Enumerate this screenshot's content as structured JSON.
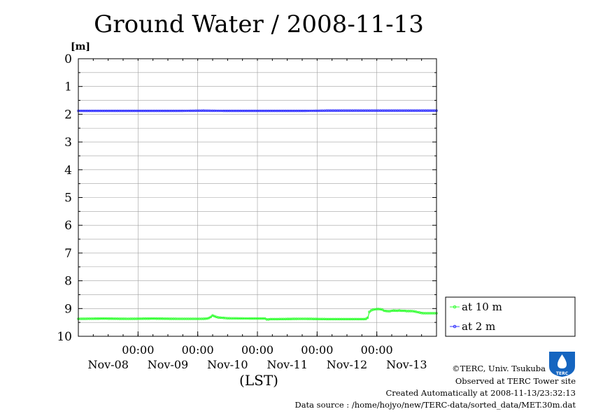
{
  "chart_data": {
    "type": "line",
    "title": "Ground Water / 2008-11-13",
    "ylabel": "[m]",
    "xlabel": "(LST)",
    "ylim": [
      0,
      10
    ],
    "y_inverted": true,
    "yticks": [
      "0",
      "1",
      "2",
      "3",
      "4",
      "5",
      "6",
      "7",
      "8",
      "9",
      "10"
    ],
    "xlim": [
      0,
      144
    ],
    "x_ticks": [
      {
        "x": 24,
        "time": "00:00",
        "date": "Nov-09"
      },
      {
        "x": 48,
        "time": "00:00",
        "date": "Nov-10"
      },
      {
        "x": 72,
        "time": "00:00",
        "date": "Nov-11"
      },
      {
        "x": 96,
        "time": "00:00",
        "date": "Nov-12"
      },
      {
        "x": 120,
        "time": "00:00",
        "date": "Nov-13"
      }
    ],
    "x_day_labels": [
      {
        "x": 12,
        "date": "Nov-08"
      },
      {
        "x": 36,
        "date": "Nov-09"
      },
      {
        "x": 60,
        "date": "Nov-10"
      },
      {
        "x": 84,
        "date": "Nov-11"
      },
      {
        "x": 108,
        "date": "Nov-12"
      },
      {
        "x": 132,
        "date": "Nov-13"
      }
    ],
    "x_units": "hours from 2008-11-08 00:00 LST",
    "grid": true,
    "legend_position": "bottom-right outside",
    "series": [
      {
        "name": "at 10 m",
        "color": "#33ff33",
        "marker": "circle",
        "x": [
          0,
          10,
          20,
          30,
          40,
          50,
          52,
          53,
          54,
          56,
          60,
          70,
          75,
          76,
          77,
          80,
          90,
          100,
          110,
          115,
          116,
          116.5,
          117,
          118,
          119,
          120,
          121,
          122,
          123,
          124,
          125,
          126,
          127,
          128,
          129,
          130,
          131,
          132,
          133,
          134,
          135,
          136,
          137,
          138,
          139,
          140,
          141,
          142,
          143,
          144
        ],
        "y": [
          9.37,
          9.36,
          9.37,
          9.36,
          9.37,
          9.37,
          9.36,
          9.32,
          9.25,
          9.32,
          9.35,
          9.36,
          9.36,
          9.4,
          9.38,
          9.38,
          9.37,
          9.38,
          9.38,
          9.38,
          9.37,
          9.3,
          9.12,
          9.05,
          9.03,
          9.02,
          9.02,
          9.03,
          9.08,
          9.09,
          9.1,
          9.08,
          9.07,
          9.08,
          9.07,
          9.08,
          9.08,
          9.09,
          9.09,
          9.09,
          9.1,
          9.12,
          9.14,
          9.16,
          9.17,
          9.17,
          9.17,
          9.17,
          9.17,
          9.17
        ]
      },
      {
        "name": "at 2 m",
        "color": "#3333ff",
        "marker": "circle",
        "x": [
          0,
          10,
          20,
          30,
          40,
          50,
          60,
          70,
          80,
          90,
          100,
          110,
          120,
          130,
          140,
          144
        ],
        "y": [
          1.88,
          1.88,
          1.88,
          1.88,
          1.88,
          1.87,
          1.88,
          1.88,
          1.88,
          1.88,
          1.87,
          1.87,
          1.87,
          1.87,
          1.87,
          1.87
        ]
      }
    ]
  },
  "credits": {
    "copyright": "©TERC, Univ. Tsukuba",
    "observed": "Observed at TERC Tower site",
    "created": "Created Automatically at 2008-11-13/23:32:13",
    "source": "Data source : /home/hojyo/new/TERC-data/sorted_data/MET.30m.dat",
    "logo_text": "TERC"
  }
}
